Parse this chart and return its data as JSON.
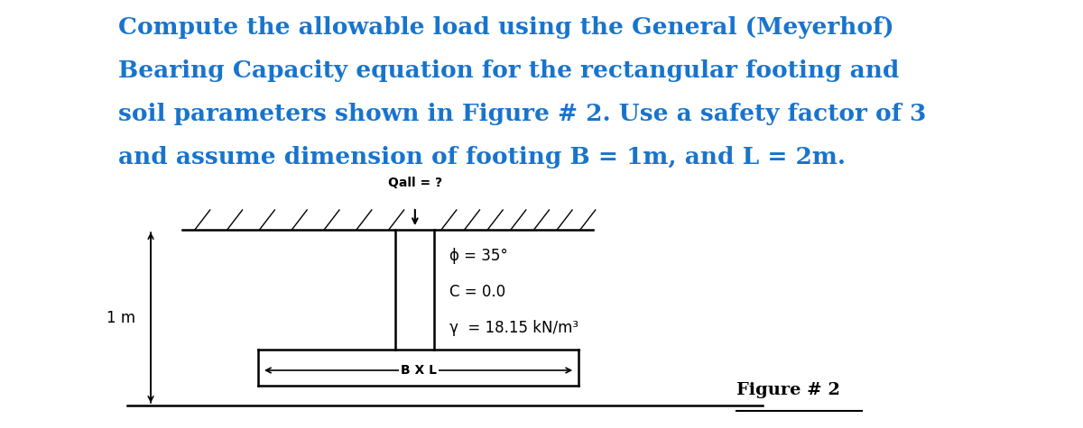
{
  "title_lines": [
    "Compute the allowable load using the General (Meyerhof)",
    "Bearing Capacity equation for the rectangular footing and",
    "soil parameters shown in Figure # 2. Use a safety factor of 3",
    "and assume dimension of footing B = 1m, and L = 2m."
  ],
  "title_color": "#1874CD",
  "title_fontsize": 19,
  "background_color": "#ffffff",
  "qall_label": "Qall = ?",
  "param_phi": "ϕ = 35°",
  "param_C": "C = 0.0",
  "param_gamma": "γ  = 18.15 kN/m³",
  "depth_label": "1 m",
  "bxl_label": "B X L",
  "figure_label": "Figure # 2",
  "fig_width": 12.0,
  "fig_height": 4.75
}
